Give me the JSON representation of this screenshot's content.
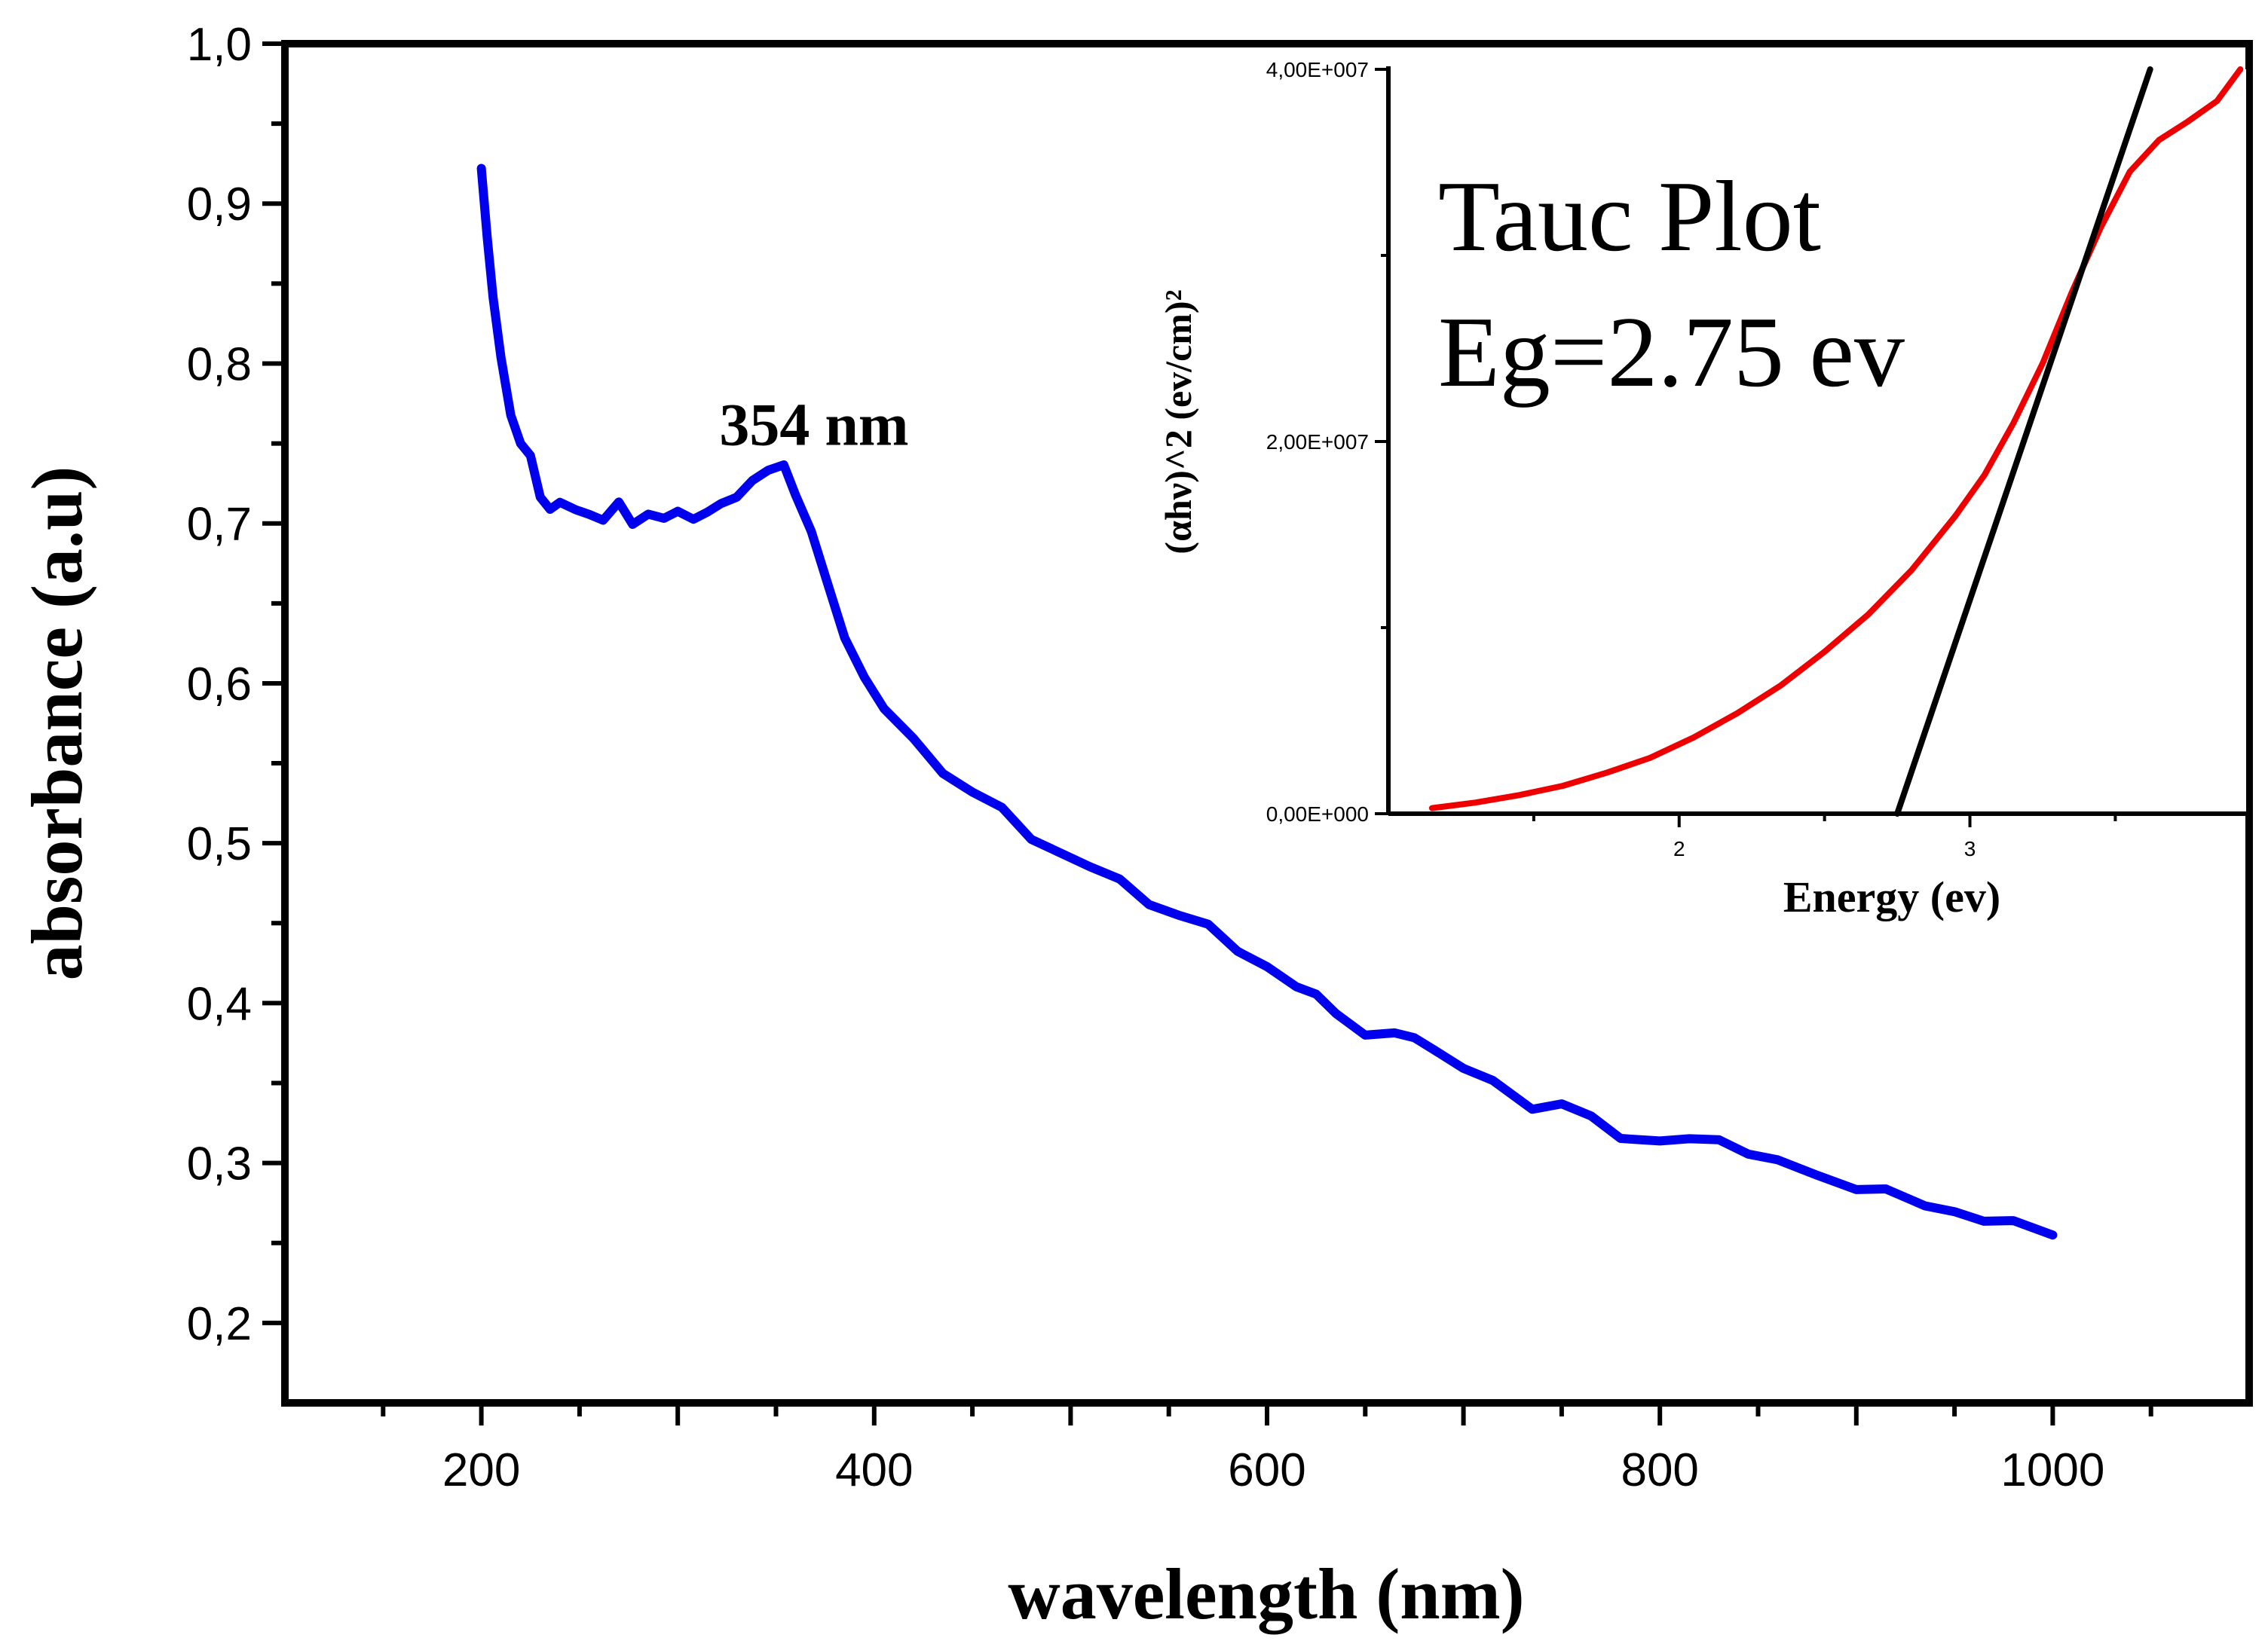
{
  "chart_data": [
    {
      "type": "line",
      "name": "main-absorbance",
      "xlabel": "wavelength (nm)",
      "ylabel": "absorbance (a.u)",
      "xlim": [
        100,
        1100
      ],
      "ylim": [
        0.15,
        1.0
      ],
      "xticks": [
        200,
        400,
        600,
        800,
        1000
      ],
      "xtick_labels": [
        "200",
        "400",
        "600",
        "800",
        "1000"
      ],
      "yticks": [
        0.2,
        0.3,
        0.4,
        0.5,
        0.6,
        0.7,
        0.8,
        0.9,
        1.0
      ],
      "ytick_labels": [
        "0,2",
        "0,3",
        "0,4",
        "0,5",
        "0,6",
        "0,7",
        "0,8",
        "0,9",
        "1,0"
      ],
      "annotation": {
        "text": "354 nm",
        "x": 354,
        "y": 0.733
      },
      "series": [
        {
          "name": "absorbance",
          "color": "#0000ee",
          "x": [
            200,
            203,
            206,
            210,
            215,
            220,
            225,
            230,
            235,
            240,
            248,
            255,
            262,
            270,
            277,
            285,
            293,
            300,
            308,
            315,
            322,
            330,
            338,
            346,
            354,
            360,
            368,
            375,
            385,
            395,
            405,
            420,
            435,
            450,
            465,
            480,
            495,
            510,
            525,
            540,
            555,
            570,
            585,
            600,
            615,
            625,
            635,
            650,
            665,
            675,
            685,
            700,
            715,
            735,
            750,
            765,
            780,
            800,
            815,
            830,
            845,
            860,
            880,
            900,
            915,
            935,
            950,
            965,
            980,
            1000
          ],
          "y": [
            0.922,
            0.88,
            0.84,
            0.8,
            0.77,
            0.75,
            0.74,
            0.72,
            0.71,
            0.712,
            0.705,
            0.708,
            0.702,
            0.711,
            0.703,
            0.707,
            0.702,
            0.704,
            0.705,
            0.707,
            0.71,
            0.72,
            0.728,
            0.732,
            0.733,
            0.72,
            0.695,
            0.665,
            0.632,
            0.605,
            0.583,
            0.562,
            0.546,
            0.532,
            0.52,
            0.506,
            0.495,
            0.484,
            0.474,
            0.464,
            0.455,
            0.447,
            0.436,
            0.424,
            0.409,
            0.402,
            0.396,
            0.38,
            0.379,
            0.382,
            0.372,
            0.358,
            0.348,
            0.336,
            0.337,
            0.327,
            0.319,
            0.315,
            0.314,
            0.311,
            0.308,
            0.302,
            0.29,
            0.287,
            0.285,
            0.272,
            0.266,
            0.266,
            0.264,
            0.255
          ]
        }
      ]
    },
    {
      "type": "line",
      "name": "inset-tauc",
      "xlabel": "Energy (ev)",
      "ylabel": "(αhν)^2 (ev/cm)²",
      "xlim": [
        1.0,
        3.95
      ],
      "ylim": [
        0,
        40000000
      ],
      "xticks": [
        2,
        3
      ],
      "xtick_labels": [
        "2",
        "3"
      ],
      "yticks": [
        0,
        20000000,
        40000000
      ],
      "ytick_labels": [
        "0,00E+000",
        "2,00E+007",
        "4,00E+007"
      ],
      "annotation_lines": [
        "Tauc Plot",
        "Eg=2.75 ev"
      ],
      "series": [
        {
          "name": "tauc-curve",
          "color": "#ee0000",
          "x": [
            1.15,
            1.3,
            1.45,
            1.6,
            1.75,
            1.9,
            2.05,
            2.2,
            2.35,
            2.5,
            2.65,
            2.8,
            2.95,
            3.05,
            3.15,
            3.25,
            3.35,
            3.45,
            3.55,
            3.65,
            3.75,
            3.85,
            3.93
          ],
          "y": [
            300000,
            600000,
            1000000,
            1500000,
            2200000,
            3000000,
            4100000,
            5400000,
            6900000,
            8700000,
            10700000,
            13100000,
            16000000,
            18200000,
            21000000,
            24200000,
            28000000,
            31500000,
            34500000,
            36200000,
            37200000,
            38300000,
            40000000
          ]
        },
        {
          "name": "tangent-fit",
          "color": "#000000",
          "x": [
            2.75,
            3.62
          ],
          "y": [
            0,
            40000000
          ]
        }
      ]
    }
  ]
}
